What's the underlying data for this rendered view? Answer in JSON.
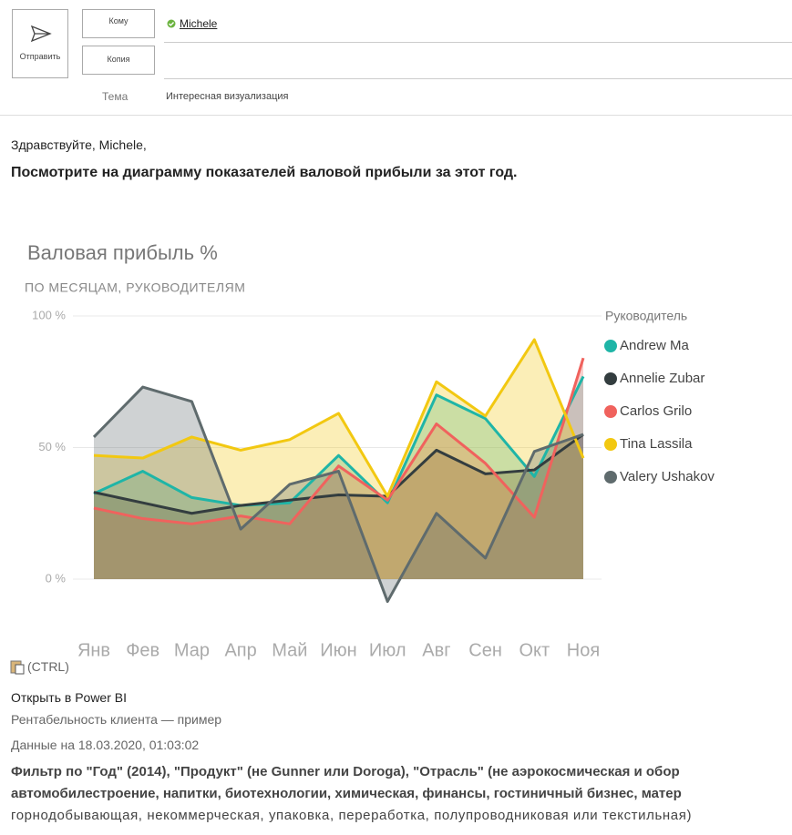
{
  "header": {
    "send": "Отправить",
    "to_button": "Кому",
    "cc_button": "Копия",
    "to": "Michele",
    "subject_label": "Тема",
    "subject": "Интересная визуализация"
  },
  "body": {
    "greeting": "Здравствуйте, Michele,",
    "message": "Посмотрите на диаграмму показателей валовой прибыли за этот год.",
    "paste_hint": "(CTRL)",
    "link": "Открыть в Power BI",
    "report": "Рентабельность клиента — пример",
    "timestamp": "Данные на 18.03.2020, 01:03:02",
    "filter_lines": [
      "Фильтр по \"Год\" (2014), \"Продукт\" (не Gunner или Doroga), \"Отрасль\" (не аэрокосмическая и обор",
      "автомобилестроение, напитки, биотехнологии, химическая, финансы, гостиничный бизнес, матер",
      "горнодобывающая, некоммерческая, упаковка, переработка, полупроводниковая или текстильная)"
    ]
  },
  "chart_data": {
    "type": "area",
    "title": "Валовая прибыль %",
    "subtitle": "ПО МЕСЯЦАМ, РУКОВОДИТЕЛЯМ",
    "legend_title": "Руководитель",
    "legend": "right",
    "categories": [
      "Янв",
      "Фев",
      "Мар",
      "Апр",
      "Май",
      "Июн",
      "Июл",
      "Авг",
      "Сен",
      "Окт",
      "Ноя"
    ],
    "ylim": [
      -10,
      100
    ],
    "yticks": [
      {
        "value": 0,
        "label": "0 %"
      },
      {
        "value": 50,
        "label": "50 %"
      },
      {
        "value": 100,
        "label": "100 %"
      }
    ],
    "grid": true,
    "series": [
      {
        "name": "Andrew Ma",
        "color": "#1fb5a7",
        "values": [
          32.5,
          41,
          31,
          28,
          29,
          47,
          29,
          70,
          61,
          39,
          77
        ]
      },
      {
        "name": "Annelie Zubar",
        "color": "#333d3f",
        "values": [
          33,
          29,
          25,
          28,
          30,
          32,
          31.5,
          49,
          40,
          41.5,
          55
        ]
      },
      {
        "name": "Carlos Grilo",
        "color": "#f0625d",
        "values": [
          27,
          23,
          21,
          24,
          21,
          43,
          30,
          59,
          44,
          23.5,
          84
        ]
      },
      {
        "name": "Tina Lassila",
        "color": "#f2c811",
        "values": [
          47,
          46,
          54,
          49,
          53,
          63,
          31.5,
          75,
          62,
          91,
          46
        ]
      },
      {
        "name": "Valery Ushakov",
        "color": "#5f6b6d",
        "values": [
          54,
          73,
          67.5,
          19,
          36,
          41,
          -8.5,
          25,
          8,
          48.5,
          55
        ]
      }
    ]
  }
}
